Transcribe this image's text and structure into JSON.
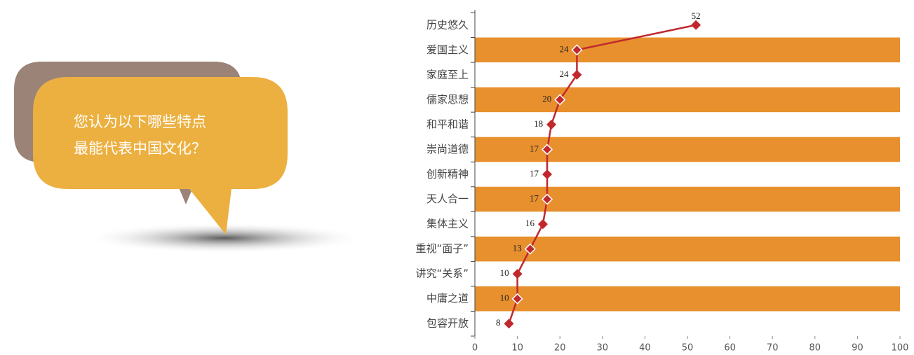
{
  "bubble": {
    "lines": [
      "您认为以下哪些特点",
      "最能代表中国文化？"
    ]
  },
  "chart_data": {
    "type": "line",
    "orientation": "horizontal",
    "categories": [
      "历史悠久",
      "爱国主义",
      "家庭至上",
      "儒家思想",
      "和平和谐",
      "崇尚道德",
      "创新精神",
      "天人合一",
      "集体主义",
      "重视“面子”",
      "讲究“关系”",
      "中庸之道",
      "包容开放"
    ],
    "series": [
      {
        "name": null,
        "color": "#c0282d",
        "values": [
          52,
          24,
          24,
          20,
          18,
          17,
          17,
          17,
          16,
          13,
          10,
          10,
          8
        ]
      }
    ],
    "band_color": "#e8902e",
    "xlim": [
      0,
      100
    ],
    "xticks": [
      0,
      10,
      20,
      30,
      40,
      50,
      60,
      70,
      80,
      90,
      100
    ]
  }
}
